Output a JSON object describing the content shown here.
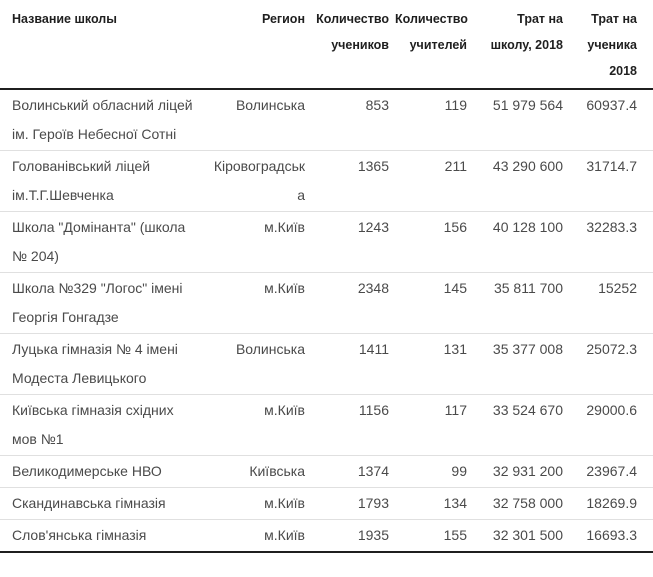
{
  "chart_data": {
    "type": "table",
    "title": "",
    "columns": [
      "Название школы",
      "Регион",
      "Количество учеников",
      "Количество учителей",
      "Трат на школу, 2018",
      "Трат на ученика 2018"
    ],
    "rows": [
      [
        "Волинський обласний ліцей ім. Героїв Небесної Сотні",
        "Волинська",
        "853",
        "119",
        "51 979 564",
        "60937.4"
      ],
      [
        "Голованівський ліцей ім.Т.Г.Шевченка",
        "Кіровоградська",
        "1365",
        "211",
        "43 290 600",
        "31714.7"
      ],
      [
        "Школа \"Домінанта\" (школа № 204)",
        "м.Київ",
        "1243",
        "156",
        "40 128 100",
        "32283.3"
      ],
      [
        "Школа №329 \"Логос\" імені Георгія Гонгадзе",
        "м.Київ",
        "2348",
        "145",
        "35 811 700",
        "15252"
      ],
      [
        "Луцька гімназія № 4 імені Модеста Левицького",
        "Волинська",
        "1411",
        "131",
        "35 377 008",
        "25072.3"
      ],
      [
        "Київська гімназія східних мов №1",
        "м.Київ",
        "1156",
        "117",
        "33 524 670",
        "29000.6"
      ],
      [
        "Великодимерське НВО",
        "Київська",
        "1374",
        "99",
        "32 931 200",
        "23967.4"
      ],
      [
        "Скандинавська гімназія",
        "м.Київ",
        "1793",
        "134",
        "32 758 000",
        "18269.9"
      ],
      [
        "Слов'янська гімназія",
        "м.Київ",
        "1935",
        "155",
        "32 301 500",
        "16693.3"
      ]
    ]
  },
  "colors": {
    "header_text": "#1f1f1f",
    "body_text": "#4a4a4a",
    "row_divider": "#e0e0e0",
    "strong_border": "#1f1f1f",
    "background": "#ffffff"
  }
}
